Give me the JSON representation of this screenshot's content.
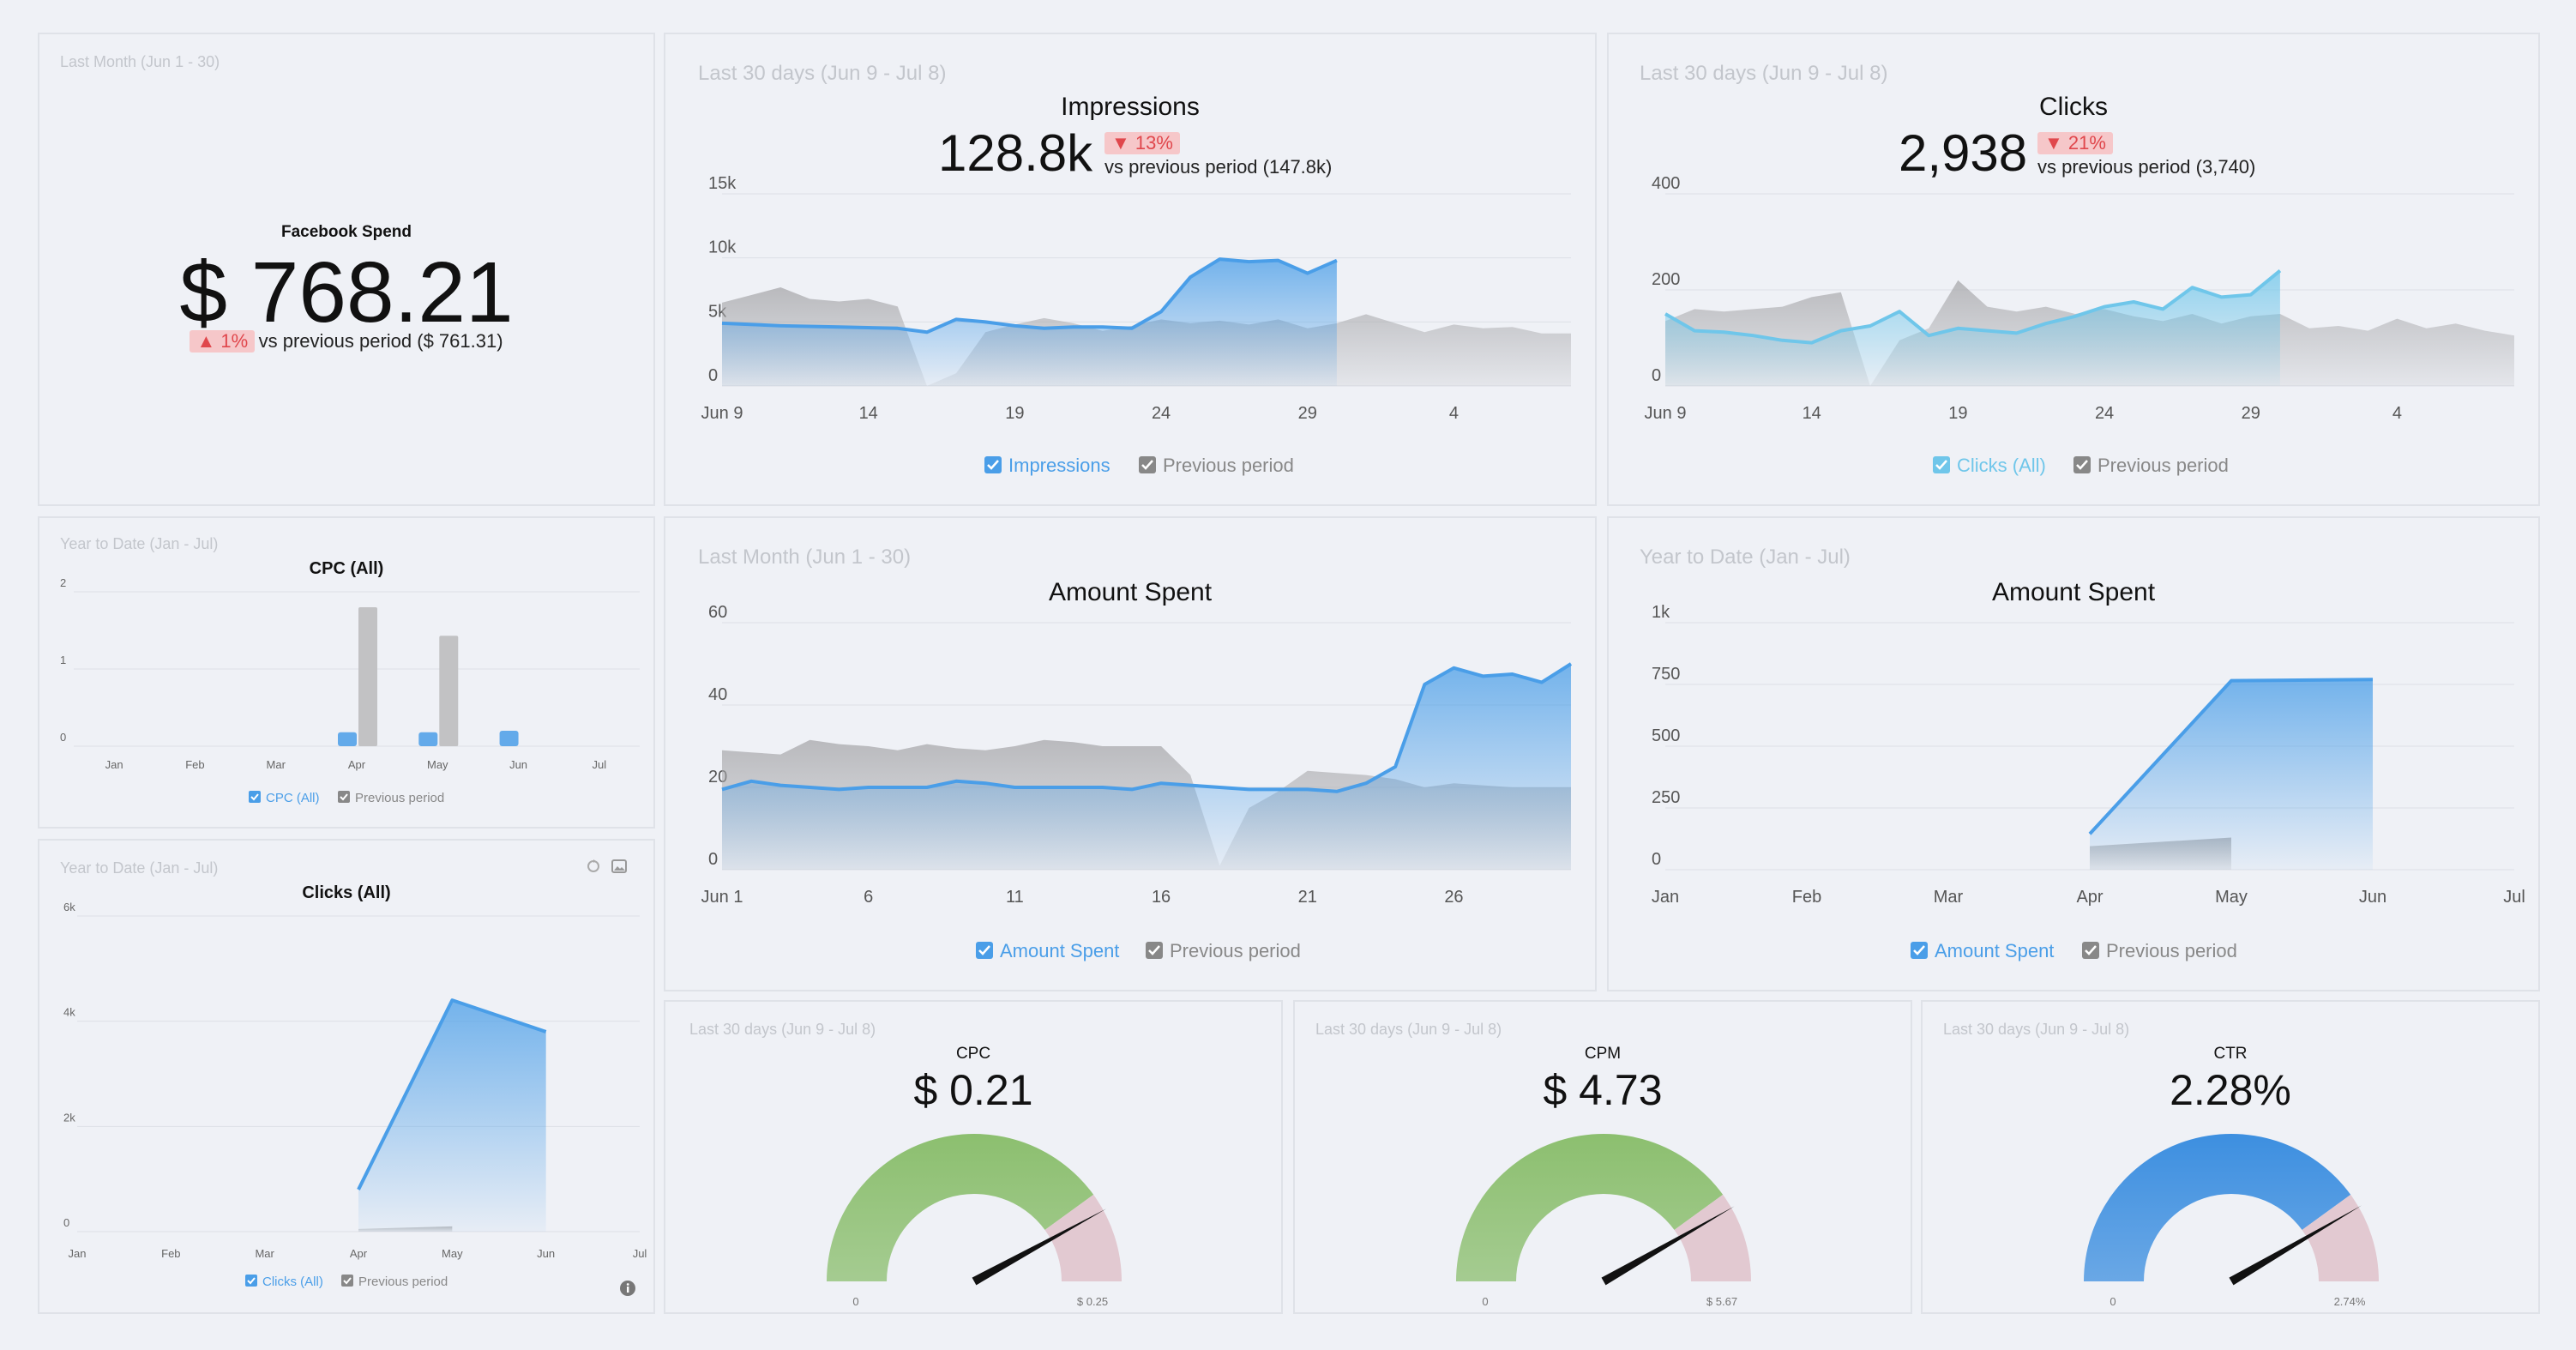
{
  "colors": {
    "primary": "#4a9ee8",
    "primary_light": "#6fc6ea",
    "previous": "#c2c2c4",
    "down": "#e0474c",
    "badge_bg": "#f6c7c9",
    "gauge_green": "#8cbf6f",
    "gauge_pink": "#e2c9d1",
    "gauge_blue": "#3d8fe0",
    "needle": "#111111"
  },
  "fb_spend": {
    "period": "Last Month (Jun 1 - 30)",
    "title": "Facebook Spend",
    "value": "$ 768.21",
    "change": "▲ 1%",
    "comparison": "vs previous period ($ 761.31)"
  },
  "impressions": {
    "period": "Last 30 days (Jun 9 - Jul 8)",
    "title": "Impressions",
    "value": "128.8k",
    "change": "▼ 13%",
    "comparison": "vs previous period (147.8k)",
    "legend_current": "Impressions",
    "legend_previous": "Previous period"
  },
  "clicks": {
    "period": "Last 30 days (Jun 9 - Jul 8)",
    "title": "Clicks",
    "value": "2,938",
    "change": "▼ 21%",
    "comparison": "vs previous period (3,740)",
    "legend_current": "Clicks (All)",
    "legend_previous": "Previous period"
  },
  "cpc_all": {
    "period": "Year to Date (Jan - Jul)",
    "title": "CPC (All)",
    "legend_current": "CPC (All)",
    "legend_previous": "Previous period"
  },
  "clicks_ytd": {
    "period": "Year to Date (Jan - Jul)",
    "title": "Clicks (All)",
    "legend_current": "Clicks (All)",
    "legend_previous": "Previous period"
  },
  "amount_month": {
    "period": "Last Month (Jun 1 - 30)",
    "title": "Amount Spent",
    "legend_current": "Amount Spent",
    "legend_previous": "Previous period"
  },
  "amount_ytd": {
    "period": "Year to Date (Jan - Jul)",
    "title": "Amount Spent",
    "legend_current": "Amount Spent",
    "legend_previous": "Previous period"
  },
  "gauge_cpc": {
    "period": "Last 30 days (Jun 9 - Jul 8)",
    "title": "CPC",
    "value": "$ 0.21",
    "min_label": "0",
    "max_label": "$ 0.25"
  },
  "gauge_cpm": {
    "period": "Last 30 days (Jun 9 - Jul 8)",
    "title": "CPM",
    "value": "$ 4.73",
    "min_label": "0",
    "max_label": "$ 5.67"
  },
  "gauge_ctr": {
    "period": "Last 30 days (Jun 9 - Jul 8)",
    "title": "CTR",
    "value": "2.28%",
    "min_label": "0",
    "max_label": "2.74%"
  },
  "chart_data": [
    {
      "id": "impressions",
      "type": "area",
      "ylim": [
        0,
        15000
      ],
      "yticks": [
        {
          "v": 0,
          "label": "0"
        },
        {
          "v": 5000,
          "label": "5k"
        },
        {
          "v": 10000,
          "label": "10k"
        },
        {
          "v": 15000,
          "label": "15k"
        }
      ],
      "xlim": [
        0,
        29
      ],
      "xticks": [
        {
          "v": 0,
          "label": "Jun 9"
        },
        {
          "v": 5,
          "label": "14"
        },
        {
          "v": 10,
          "label": "19"
        },
        {
          "v": 15,
          "label": "24"
        },
        {
          "v": 20,
          "label": "29"
        },
        {
          "v": 25,
          "label": "4"
        }
      ],
      "series": [
        {
          "name": "Impressions",
          "values": [
            [
              0,
              4900
            ],
            [
              2,
              4700
            ],
            [
              4,
              4600
            ],
            [
              6,
              4500
            ],
            [
              7,
              4200
            ],
            [
              8,
              5200
            ],
            [
              9,
              5000
            ],
            [
              10,
              4700
            ],
            [
              11,
              4500
            ],
            [
              12,
              4600
            ],
            [
              13,
              4600
            ],
            [
              14,
              4500
            ],
            [
              15,
              5800
            ],
            [
              16,
              8500
            ],
            [
              17,
              9900
            ],
            [
              18,
              9700
            ],
            [
              19,
              9800
            ],
            [
              20,
              8800
            ],
            [
              21,
              9800
            ]
          ]
        },
        {
          "name": "Previous period",
          "values": [
            [
              0,
              6500
            ],
            [
              1,
              7100
            ],
            [
              2,
              7700
            ],
            [
              3,
              6800
            ],
            [
              4,
              6600
            ],
            [
              5,
              6800
            ],
            [
              6,
              6200
            ],
            [
              7,
              0
            ],
            [
              8,
              1000
            ],
            [
              9,
              4200
            ],
            [
              10,
              4800
            ],
            [
              11,
              5300
            ],
            [
              12,
              4900
            ],
            [
              13,
              4300
            ],
            [
              14,
              4700
            ],
            [
              15,
              5200
            ],
            [
              16,
              4900
            ],
            [
              17,
              5100
            ],
            [
              18,
              4800
            ],
            [
              19,
              5200
            ],
            [
              20,
              4500
            ],
            [
              21,
              4900
            ],
            [
              22,
              5600
            ],
            [
              23,
              4900
            ],
            [
              24,
              4200
            ],
            [
              25,
              4800
            ],
            [
              26,
              4500
            ],
            [
              27,
              4600
            ],
            [
              28,
              4100
            ],
            [
              29,
              4100
            ]
          ]
        }
      ]
    },
    {
      "id": "clicks",
      "type": "area",
      "ylim": [
        0,
        400
      ],
      "yticks": [
        {
          "v": 0,
          "label": "0"
        },
        {
          "v": 200,
          "label": "200"
        },
        {
          "v": 400,
          "label": "400"
        }
      ],
      "xlim": [
        0,
        29
      ],
      "xticks": [
        {
          "v": 0,
          "label": "Jun 9"
        },
        {
          "v": 5,
          "label": "14"
        },
        {
          "v": 10,
          "label": "19"
        },
        {
          "v": 15,
          "label": "24"
        },
        {
          "v": 20,
          "label": "29"
        },
        {
          "v": 25,
          "label": "4"
        }
      ],
      "series": [
        {
          "name": "Clicks (All)",
          "values": [
            [
              0,
              150
            ],
            [
              1,
              115
            ],
            [
              2,
              112
            ],
            [
              3,
              105
            ],
            [
              4,
              95
            ],
            [
              5,
              90
            ],
            [
              6,
              115
            ],
            [
              7,
              125
            ],
            [
              8,
              155
            ],
            [
              9,
              105
            ],
            [
              10,
              120
            ],
            [
              11,
              115
            ],
            [
              12,
              110
            ],
            [
              13,
              130
            ],
            [
              14,
              145
            ],
            [
              15,
              165
            ],
            [
              16,
              175
            ],
            [
              17,
              160
            ],
            [
              18,
              205
            ],
            [
              19,
              185
            ],
            [
              20,
              190
            ],
            [
              21,
              240
            ]
          ]
        },
        {
          "name": "Previous period",
          "values": [
            [
              0,
              135
            ],
            [
              1,
              160
            ],
            [
              2,
              155
            ],
            [
              3,
              160
            ],
            [
              4,
              165
            ],
            [
              5,
              185
            ],
            [
              6,
              195
            ],
            [
              7,
              0
            ],
            [
              8,
              95
            ],
            [
              9,
              120
            ],
            [
              10,
              220
            ],
            [
              11,
              165
            ],
            [
              12,
              155
            ],
            [
              13,
              165
            ],
            [
              14,
              150
            ],
            [
              15,
              160
            ],
            [
              16,
              145
            ],
            [
              17,
              135
            ],
            [
              18,
              150
            ],
            [
              19,
              130
            ],
            [
              20,
              145
            ],
            [
              21,
              150
            ],
            [
              22,
              120
            ],
            [
              23,
              125
            ],
            [
              24,
              115
            ],
            [
              25,
              140
            ],
            [
              26,
              120
            ],
            [
              27,
              130
            ],
            [
              28,
              115
            ],
            [
              29,
              105
            ]
          ]
        }
      ]
    },
    {
      "id": "amount_month",
      "type": "area",
      "ylim": [
        0,
        60
      ],
      "yticks": [
        {
          "v": 0,
          "label": "0"
        },
        {
          "v": 20,
          "label": "20"
        },
        {
          "v": 40,
          "label": "40"
        },
        {
          "v": 60,
          "label": "60"
        }
      ],
      "xlim": [
        0,
        29
      ],
      "xticks": [
        {
          "v": 0,
          "label": "Jun 1"
        },
        {
          "v": 5,
          "label": "6"
        },
        {
          "v": 10,
          "label": "11"
        },
        {
          "v": 15,
          "label": "16"
        },
        {
          "v": 20,
          "label": "21"
        },
        {
          "v": 25,
          "label": "26"
        }
      ],
      "series": [
        {
          "name": "Amount Spent",
          "values": [
            [
              0,
              19.5
            ],
            [
              1,
              21.5
            ],
            [
              2,
              20.5
            ],
            [
              3,
              20
            ],
            [
              4,
              19.5
            ],
            [
              5,
              20
            ],
            [
              6,
              20
            ],
            [
              7,
              20
            ],
            [
              8,
              21.5
            ],
            [
              9,
              21
            ],
            [
              10,
              20
            ],
            [
              11,
              20
            ],
            [
              12,
              20
            ],
            [
              13,
              20
            ],
            [
              14,
              19.5
            ],
            [
              15,
              21
            ],
            [
              16,
              20.5
            ],
            [
              17,
              20
            ],
            [
              18,
              19.5
            ],
            [
              19,
              19.5
            ],
            [
              20,
              19.5
            ],
            [
              21,
              19
            ],
            [
              22,
              21
            ],
            [
              23,
              25
            ],
            [
              24,
              45
            ],
            [
              25,
              49
            ],
            [
              26,
              47
            ],
            [
              27,
              47.5
            ],
            [
              28,
              45.5
            ],
            [
              29,
              50
            ]
          ]
        },
        {
          "name": "Previous period",
          "values": [
            [
              0,
              29
            ],
            [
              1,
              28.5
            ],
            [
              2,
              28
            ],
            [
              3,
              31.5
            ],
            [
              4,
              30.5
            ],
            [
              5,
              30
            ],
            [
              6,
              29
            ],
            [
              7,
              30.5
            ],
            [
              8,
              29.5
            ],
            [
              9,
              29
            ],
            [
              10,
              30
            ],
            [
              11,
              31.5
            ],
            [
              12,
              31
            ],
            [
              13,
              30
            ],
            [
              14,
              30
            ],
            [
              15,
              30
            ],
            [
              16,
              23
            ],
            [
              17,
              1
            ],
            [
              18,
              15
            ],
            [
              19,
              19
            ],
            [
              20,
              24
            ],
            [
              21,
              23.5
            ],
            [
              22,
              23
            ],
            [
              23,
              22
            ],
            [
              24,
              20
            ],
            [
              25,
              21
            ],
            [
              26,
              20.5
            ],
            [
              27,
              20
            ],
            [
              28,
              20
            ],
            [
              29,
              20
            ]
          ]
        }
      ]
    },
    {
      "id": "amount_ytd",
      "type": "area",
      "ylim": [
        0,
        1000
      ],
      "yticks": [
        {
          "v": 0,
          "label": "0"
        },
        {
          "v": 250,
          "label": "250"
        },
        {
          "v": 500,
          "label": "500"
        },
        {
          "v": 750,
          "label": "750"
        },
        {
          "v": 1000,
          "label": "1k"
        }
      ],
      "xlim": [
        0,
        6
      ],
      "xticks": [
        {
          "v": 0,
          "label": "Jan"
        },
        {
          "v": 1,
          "label": "Feb"
        },
        {
          "v": 2,
          "label": "Mar"
        },
        {
          "v": 3,
          "label": "Apr"
        },
        {
          "v": 4,
          "label": "May"
        },
        {
          "v": 5,
          "label": "Jun"
        },
        {
          "v": 6,
          "label": "Jul"
        }
      ],
      "series": [
        {
          "name": "Amount Spent",
          "values": [
            [
              3,
              145
            ],
            [
              4,
              765
            ],
            [
              5,
              770
            ]
          ]
        },
        {
          "name": "Previous period",
          "values": [
            [
              3,
              95
            ],
            [
              4,
              130
            ]
          ]
        }
      ]
    },
    {
      "id": "cpc_all",
      "type": "bar",
      "ylim": [
        0,
        2
      ],
      "yticks": [
        {
          "v": 0,
          "label": "0"
        },
        {
          "v": 1,
          "label": "1"
        },
        {
          "v": 2,
          "label": "2"
        }
      ],
      "categories": [
        "Jan",
        "Feb",
        "Mar",
        "Apr",
        "May",
        "Jun",
        "Jul"
      ],
      "series": [
        {
          "name": "CPC (All)",
          "values": [
            0,
            0,
            0,
            0.18,
            0.18,
            0.2,
            0
          ]
        },
        {
          "name": "Previous period",
          "values": [
            0,
            0,
            0,
            1.8,
            1.43,
            0,
            0
          ]
        }
      ]
    },
    {
      "id": "clicks_ytd",
      "type": "area",
      "ylim": [
        0,
        6000
      ],
      "yticks": [
        {
          "v": 0,
          "label": "0"
        },
        {
          "v": 2000,
          "label": "2k"
        },
        {
          "v": 4000,
          "label": "4k"
        },
        {
          "v": 6000,
          "label": "6k"
        }
      ],
      "xlim": [
        0,
        6
      ],
      "xticks": [
        {
          "v": 0,
          "label": "Jan"
        },
        {
          "v": 1,
          "label": "Feb"
        },
        {
          "v": 2,
          "label": "Mar"
        },
        {
          "v": 3,
          "label": "Apr"
        },
        {
          "v": 4,
          "label": "May"
        },
        {
          "v": 5,
          "label": "Jun"
        },
        {
          "v": 6,
          "label": "Jul"
        }
      ],
      "series": [
        {
          "name": "Clicks (All)",
          "values": [
            [
              3,
              800
            ],
            [
              4,
              4400
            ],
            [
              5,
              3800
            ]
          ]
        },
        {
          "name": "Previous period",
          "values": [
            [
              3,
              50
            ],
            [
              4,
              100
            ]
          ]
        }
      ]
    },
    {
      "id": "gauge_cpc",
      "type": "gauge",
      "value": 0.21,
      "min": 0,
      "max": 0.25
    },
    {
      "id": "gauge_cpm",
      "type": "gauge",
      "value": 4.73,
      "min": 0,
      "max": 5.67
    },
    {
      "id": "gauge_ctr",
      "type": "gauge",
      "value": 2.28,
      "min": 0,
      "max": 2.74
    }
  ]
}
